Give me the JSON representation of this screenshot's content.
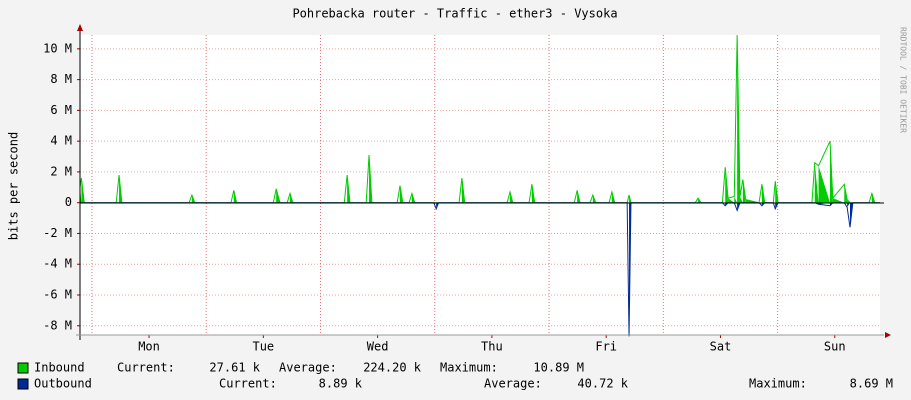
{
  "chart_data": {
    "type": "area",
    "title": "Pohrebacka router - Traffic - ether3 - Vysoka",
    "y_label": "bits per second",
    "watermark": "RRDTOOL / TOBI OETIKER",
    "stat_labels": {
      "current": "Current:",
      "average": "Average:",
      "maximum": "Maximum:"
    },
    "xlim": [
      -2.5,
      165.5
    ],
    "xticks": [
      {
        "value": 12,
        "label": "Mon"
      },
      {
        "value": 36,
        "label": "Tue"
      },
      {
        "value": 60,
        "label": "Wed"
      },
      {
        "value": 84,
        "label": "Thu"
      },
      {
        "value": 108,
        "label": "Fri"
      },
      {
        "value": 132,
        "label": "Sat"
      },
      {
        "value": 156,
        "label": "Sun"
      }
    ],
    "ylim": [
      -8600000,
      10900000
    ],
    "yticks": [
      {
        "value": -8000000,
        "label": "-8 M"
      },
      {
        "value": -6000000,
        "label": "-6 M"
      },
      {
        "value": -4000000,
        "label": "-4 M"
      },
      {
        "value": -2000000,
        "label": "-2 M"
      },
      0,
      {
        "value": 2000000,
        "label": "2 M"
      },
      {
        "value": 4000000,
        "label": "4 M"
      },
      {
        "value": 6000000,
        "label": "6 M"
      },
      {
        "value": 8000000,
        "label": "8 M"
      },
      {
        "value": 10000000,
        "label": "10 M"
      }
    ],
    "grid": true,
    "x": [
      -2.5,
      -2.2,
      -1.6,
      5.1,
      5.7,
      6.3,
      20.4,
      21,
      21.6,
      29.2,
      29.8,
      30.4,
      38.1,
      38.7,
      39.5,
      41,
      41.6,
      42.2,
      53,
      53.6,
      54.2,
      57.6,
      58.2,
      58.8,
      64.1,
      64.7,
      65.3,
      66.6,
      67.2,
      67.8,
      71.8,
      72.3,
      72.8,
      77.1,
      77.7,
      78.3,
      87.2,
      87.8,
      88.4,
      91.8,
      92.4,
      93,
      101.3,
      101.9,
      102.5,
      104.6,
      105.2,
      105.8,
      108.6,
      109.2,
      109.8,
      112.4,
      112.8,
      113.2,
      126.7,
      127.3,
      127.9,
      132.4,
      133,
      133.6,
      134.9,
      135.5,
      136.1,
      136.7,
      137.3,
      140.1,
      140.7,
      141.3,
      143.1,
      143.5,
      144.1,
      151.2,
      151.8,
      152.6,
      155,
      155.6,
      158,
      158.6,
      159.2,
      159.8,
      163.2,
      163.8,
      164.4,
      165.5
    ],
    "series": [
      {
        "name": "Inbound",
        "color": "#00cc00",
        "current": "27.61 k",
        "average": "224.20 k",
        "maximum": "10.89 M",
        "values": [
          1000000,
          1600000,
          0,
          0,
          1800000,
          0,
          0,
          500000,
          0,
          0,
          800000,
          0,
          0,
          900000,
          0,
          0,
          600000,
          0,
          0,
          1800000,
          0,
          0,
          3100000,
          0,
          0,
          1100000,
          0,
          0,
          600000,
          0,
          0,
          0,
          0,
          0,
          1600000,
          0,
          0,
          700000,
          0,
          0,
          1200000,
          0,
          0,
          800000,
          0,
          0,
          500000,
          0,
          0,
          700000,
          0,
          0,
          500000,
          0,
          0,
          300000,
          0,
          0,
          2300000,
          300000,
          400000,
          10890000,
          400000,
          1500000,
          200000,
          0,
          1200000,
          0,
          0,
          1400000,
          0,
          0,
          2600000,
          2400000,
          4000000,
          300000,
          1200000,
          200000,
          0,
          0,
          0,
          600000,
          0,
          0
        ]
      },
      {
        "name": "Outbound",
        "color": "#002a97",
        "current": "8.89 k",
        "average": "40.72 k",
        "maximum": "8.69 M",
        "values": [
          0,
          0,
          0,
          0,
          0,
          0,
          0,
          0,
          0,
          0,
          0,
          0,
          0,
          0,
          0,
          0,
          0,
          0,
          0,
          0,
          0,
          0,
          0,
          0,
          0,
          0,
          0,
          0,
          0,
          0,
          0,
          -400000,
          0,
          0,
          0,
          0,
          0,
          0,
          0,
          0,
          0,
          0,
          0,
          0,
          0,
          0,
          0,
          0,
          0,
          0,
          0,
          0,
          -8690000,
          0,
          0,
          0,
          0,
          0,
          -200000,
          0,
          0,
          -500000,
          0,
          0,
          0,
          0,
          -200000,
          0,
          0,
          -400000,
          0,
          0,
          0,
          -100000,
          -200000,
          0,
          0,
          -300000,
          -1600000,
          0,
          0,
          0,
          0,
          0
        ]
      }
    ]
  }
}
